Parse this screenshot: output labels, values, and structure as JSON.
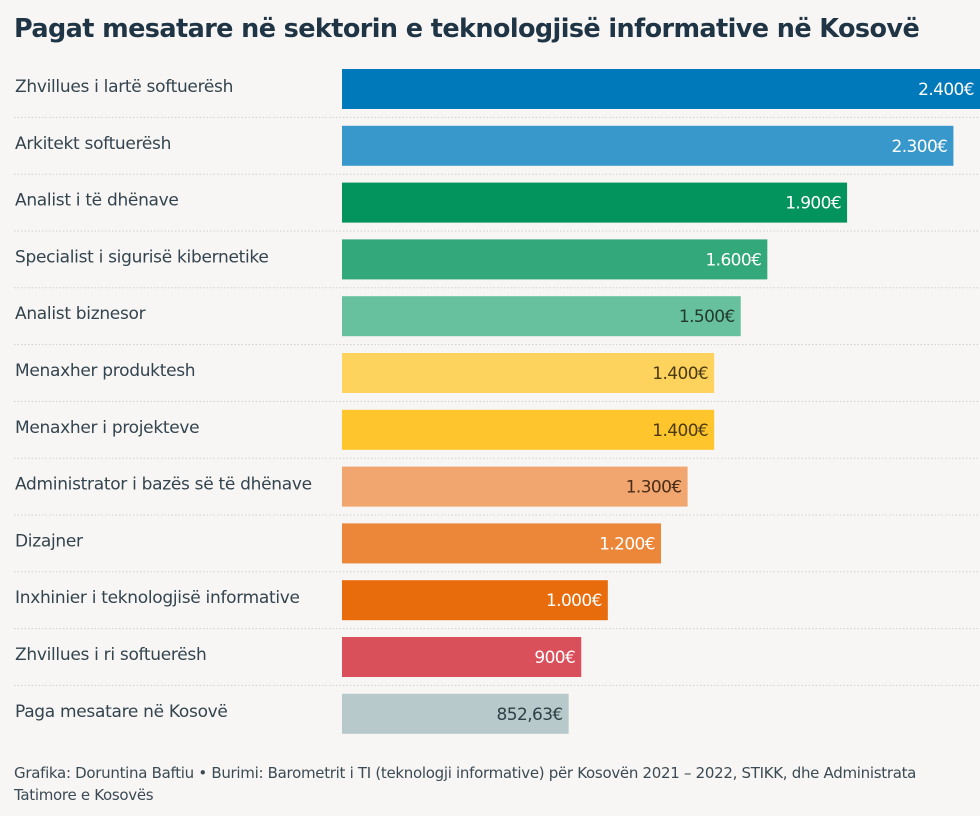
{
  "chart_data": {
    "type": "bar",
    "orientation": "horizontal",
    "title": "Pagat mesatare në sektorin e teknologjisë informative në Kosovë",
    "xlabel": "",
    "ylabel": "",
    "xlim": [
      0,
      2400
    ],
    "grid": "dotted row separators",
    "legend": "none",
    "categories": [
      "Zhvillues i lartë softuerësh",
      "Arkitekt softuerësh",
      "Analist i të dhënave",
      "Specialist i sigurisë kibernetike",
      "Analist biznesor",
      "Menaxher produktesh",
      "Menaxher i projekteve",
      "Administrator i bazës së të dhënave",
      "Dizajner",
      "Inxhinier i teknologjisë informative",
      "Zhvillues i ri softuerësh",
      "Paga mesatare në Kosovë"
    ],
    "values": [
      2400,
      2300,
      1900,
      1600,
      1500,
      1400,
      1400,
      1300,
      1200,
      1000,
      900,
      852.63
    ],
    "value_labels": [
      "2.400€",
      "2.300€",
      "1.900€",
      "1.600€",
      "1.500€",
      "1.400€",
      "1.400€",
      "1.300€",
      "1.200€",
      "1.000€",
      "900€",
      "852,63€"
    ],
    "unit": "€",
    "colors": [
      "#0079bb",
      "#3897cb",
      "#03935c",
      "#33a87a",
      "#68c19e",
      "#fdd25d",
      "#ffc52c",
      "#f0a66e",
      "#ec8638",
      "#e96c0c",
      "#d9505a",
      "#b8c9cb"
    ],
    "label_colors": [
      "#ffffff",
      "#ffffff",
      "#ffffff",
      "#ffffff",
      "#223a30",
      "#4a3a10",
      "#4a3a10",
      "#4a2c18",
      "#ffffff",
      "#ffffff",
      "#ffffff",
      "#2f3f48"
    ]
  },
  "footer": {
    "credit": "Grafika: Doruntina Baftiu • Burimi: Barometrit i TI (teknologji informative) për Kosovën 2021 – 2022, STIKK, dhe Administrata Tatimore e Kosovës"
  }
}
